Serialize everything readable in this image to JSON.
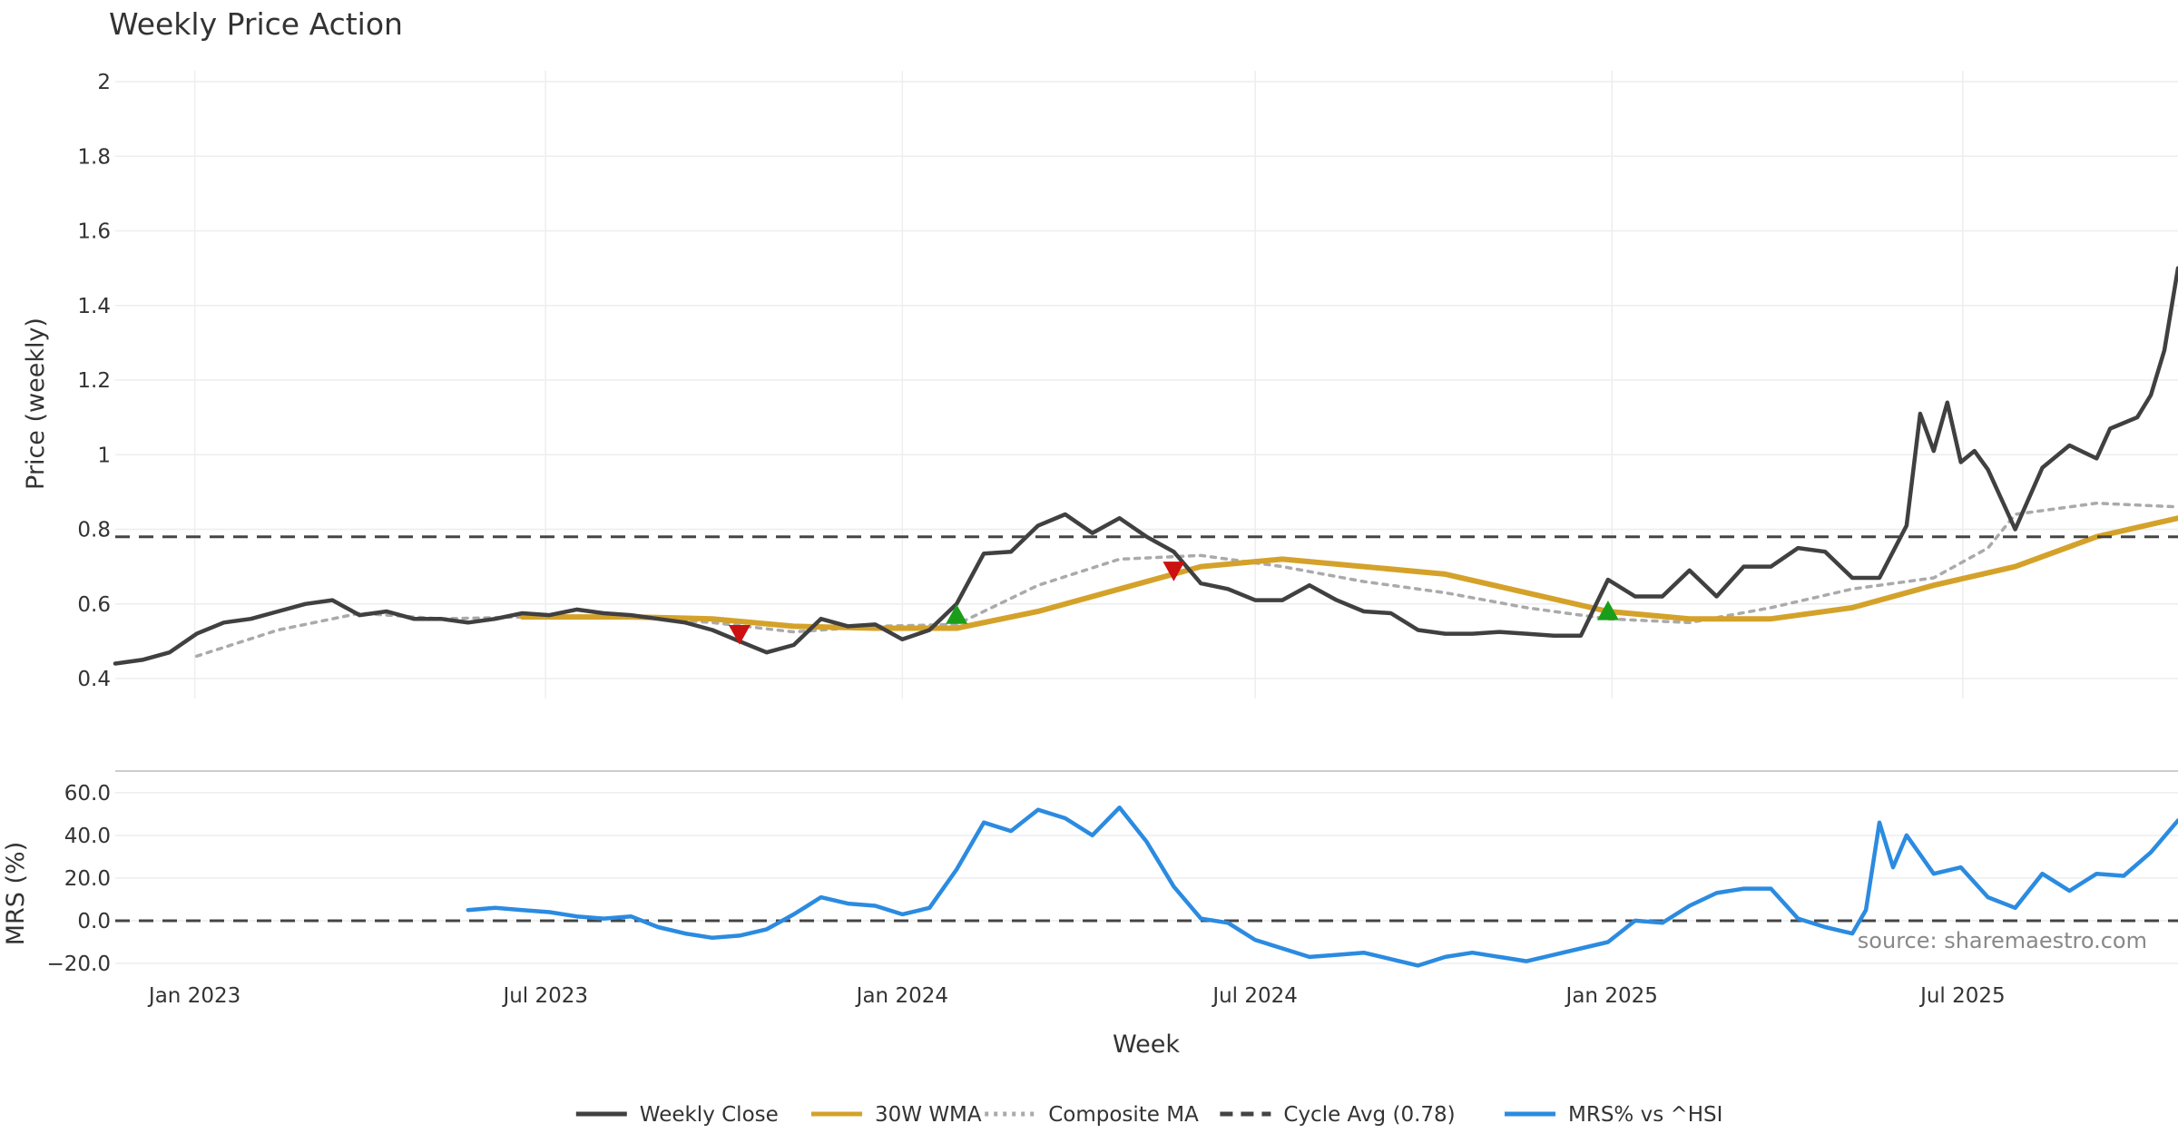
{
  "chart_data": [
    {
      "type": "line",
      "title": "Weekly Price Action",
      "xlabel": "",
      "ylabel": "Price (weekly)",
      "ylim": [
        0.4,
        2.0
      ],
      "xlim": [
        "2022-11-21",
        "2025-10-20"
      ],
      "yticks": [
        "0.4",
        "0.6",
        "0.8",
        "1",
        "1.2",
        "1.4",
        "1.6",
        "1.8",
        "2"
      ],
      "ytick_values": [
        0.4,
        0.6,
        0.8,
        1.0,
        1.2,
        1.4,
        1.6,
        1.8,
        2.0
      ],
      "grid": true,
      "series": [
        {
          "name": "Weekly Close",
          "color": "#404040",
          "style": "solid",
          "points": [
            [
              "2022-11-21",
              0.44
            ],
            [
              "2022-12-05",
              0.45
            ],
            [
              "2022-12-19",
              0.47
            ],
            [
              "2023-01-02",
              0.52
            ],
            [
              "2023-01-16",
              0.55
            ],
            [
              "2023-01-30",
              0.56
            ],
            [
              "2023-02-13",
              0.58
            ],
            [
              "2023-02-27",
              0.6
            ],
            [
              "2023-03-13",
              0.61
            ],
            [
              "2023-03-27",
              0.57
            ],
            [
              "2023-04-10",
              0.58
            ],
            [
              "2023-04-24",
              0.56
            ],
            [
              "2023-05-08",
              0.56
            ],
            [
              "2023-05-22",
              0.55
            ],
            [
              "2023-06-05",
              0.56
            ],
            [
              "2023-06-19",
              0.575
            ],
            [
              "2023-07-03",
              0.57
            ],
            [
              "2023-07-17",
              0.585
            ],
            [
              "2023-07-31",
              0.575
            ],
            [
              "2023-08-14",
              0.57
            ],
            [
              "2023-08-28",
              0.56
            ],
            [
              "2023-09-11",
              0.55
            ],
            [
              "2023-09-25",
              0.53
            ],
            [
              "2023-10-09",
              0.5
            ],
            [
              "2023-10-23",
              0.47
            ],
            [
              "2023-11-06",
              0.49
            ],
            [
              "2023-11-20",
              0.56
            ],
            [
              "2023-12-04",
              0.54
            ],
            [
              "2023-12-18",
              0.545
            ],
            [
              "2024-01-01",
              0.505
            ],
            [
              "2024-01-15",
              0.53
            ],
            [
              "2024-01-29",
              0.6
            ],
            [
              "2024-02-12",
              0.735
            ],
            [
              "2024-02-26",
              0.74
            ],
            [
              "2024-03-11",
              0.81
            ],
            [
              "2024-03-25",
              0.84
            ],
            [
              "2024-04-08",
              0.79
            ],
            [
              "2024-04-22",
              0.83
            ],
            [
              "2024-05-06",
              0.78
            ],
            [
              "2024-05-20",
              0.74
            ],
            [
              "2024-06-03",
              0.655
            ],
            [
              "2024-06-17",
              0.64
            ],
            [
              "2024-07-01",
              0.61
            ],
            [
              "2024-07-15",
              0.61
            ],
            [
              "2024-07-29",
              0.65
            ],
            [
              "2024-08-12",
              0.61
            ],
            [
              "2024-08-26",
              0.58
            ],
            [
              "2024-09-09",
              0.575
            ],
            [
              "2024-09-23",
              0.53
            ],
            [
              "2024-10-07",
              0.52
            ],
            [
              "2024-10-21",
              0.52
            ],
            [
              "2024-11-04",
              0.525
            ],
            [
              "2024-11-18",
              0.52
            ],
            [
              "2024-12-02",
              0.515
            ],
            [
              "2024-12-16",
              0.515
            ],
            [
              "2024-12-30",
              0.665
            ],
            [
              "2025-01-13",
              0.62
            ],
            [
              "2025-01-27",
              0.62
            ],
            [
              "2025-02-10",
              0.69
            ],
            [
              "2025-02-24",
              0.62
            ],
            [
              "2025-03-10",
              0.7
            ],
            [
              "2025-03-24",
              0.7
            ],
            [
              "2025-04-07",
              0.75
            ],
            [
              "2025-04-21",
              0.74
            ],
            [
              "2025-05-05",
              0.67
            ],
            [
              "2025-05-19",
              0.67
            ],
            [
              "2025-06-02",
              0.81
            ],
            [
              "2025-06-09",
              1.11
            ],
            [
              "2025-06-16",
              1.01
            ],
            [
              "2025-06-23",
              1.14
            ],
            [
              "2025-06-30",
              0.98
            ],
            [
              "2025-07-07",
              1.01
            ],
            [
              "2025-07-14",
              0.96
            ],
            [
              "2025-07-28",
              0.8
            ],
            [
              "2025-08-11",
              0.965
            ],
            [
              "2025-08-25",
              1.025
            ],
            [
              "2025-09-08",
              0.99
            ],
            [
              "2025-09-15",
              1.07
            ],
            [
              "2025-09-29",
              1.1
            ],
            [
              "2025-10-06",
              1.16
            ],
            [
              "2025-10-13",
              1.28
            ],
            [
              "2025-10-20",
              1.5
            ]
          ]
        },
        {
          "name": "30W WMA",
          "color": "#d4a22a",
          "style": "solid",
          "points": [
            [
              "2023-06-19",
              0.565
            ],
            [
              "2023-08-14",
              0.565
            ],
            [
              "2023-09-25",
              0.56
            ],
            [
              "2023-11-06",
              0.54
            ],
            [
              "2023-12-18",
              0.535
            ],
            [
              "2024-01-29",
              0.535
            ],
            [
              "2024-03-11",
              0.58
            ],
            [
              "2024-04-22",
              0.64
            ],
            [
              "2024-06-03",
              0.7
            ],
            [
              "2024-07-15",
              0.72
            ],
            [
              "2024-08-26",
              0.7
            ],
            [
              "2024-10-07",
              0.68
            ],
            [
              "2024-11-18",
              0.63
            ],
            [
              "2024-12-30",
              0.58
            ],
            [
              "2025-02-10",
              0.56
            ],
            [
              "2025-03-24",
              0.56
            ],
            [
              "2025-05-05",
              0.59
            ],
            [
              "2025-06-16",
              0.65
            ],
            [
              "2025-07-28",
              0.7
            ],
            [
              "2025-09-08",
              0.78
            ],
            [
              "2025-10-20",
              0.83
            ]
          ]
        },
        {
          "name": "Composite MA",
          "color": "#aaaaaa",
          "style": "dotted",
          "points": [
            [
              "2023-01-02",
              0.46
            ],
            [
              "2023-02-13",
              0.53
            ],
            [
              "2023-03-27",
              0.575
            ],
            [
              "2023-05-08",
              0.56
            ],
            [
              "2023-06-19",
              0.565
            ],
            [
              "2023-08-14",
              0.565
            ],
            [
              "2023-09-25",
              0.55
            ],
            [
              "2023-11-06",
              0.525
            ],
            [
              "2023-12-18",
              0.54
            ],
            [
              "2024-01-29",
              0.545
            ],
            [
              "2024-03-11",
              0.65
            ],
            [
              "2024-04-22",
              0.72
            ],
            [
              "2024-06-03",
              0.73
            ],
            [
              "2024-07-15",
              0.7
            ],
            [
              "2024-08-26",
              0.66
            ],
            [
              "2024-10-07",
              0.63
            ],
            [
              "2024-11-18",
              0.59
            ],
            [
              "2024-12-30",
              0.56
            ],
            [
              "2025-02-10",
              0.55
            ],
            [
              "2025-03-24",
              0.59
            ],
            [
              "2025-05-05",
              0.64
            ],
            [
              "2025-06-16",
              0.67
            ],
            [
              "2025-07-14",
              0.75
            ],
            [
              "2025-07-28",
              0.84
            ],
            [
              "2025-09-08",
              0.87
            ],
            [
              "2025-10-20",
              0.86
            ]
          ]
        },
        {
          "name": "Cycle Avg (0.78)",
          "color": "#444444",
          "style": "dashed",
          "value": 0.78
        }
      ],
      "markers": [
        {
          "type": "sell",
          "date": "2023-10-09",
          "value": 0.52,
          "color": "#cc1111"
        },
        {
          "type": "buy",
          "date": "2024-01-29",
          "value": 0.57,
          "color": "#1a9e1a"
        },
        {
          "type": "sell",
          "date": "2024-05-20",
          "value": 0.69,
          "color": "#cc1111"
        },
        {
          "type": "buy",
          "date": "2024-12-30",
          "value": 0.58,
          "color": "#1a9e1a"
        }
      ]
    },
    {
      "type": "line",
      "title": "",
      "xlabel": "Week",
      "ylabel": "MRS (%)",
      "ylim": [
        -20,
        65
      ],
      "yticks": [
        "−20.0",
        "0.0",
        "20.0",
        "40.0",
        "60.0"
      ],
      "ytick_values": [
        -20,
        0,
        20,
        40,
        60
      ],
      "xticks": [
        "Jan 2023",
        "Jul 2023",
        "Jan 2024",
        "Jul 2024",
        "Jan 2025",
        "Jul 2025"
      ],
      "xtick_dates": [
        "2023-01-01",
        "2023-07-01",
        "2024-01-01",
        "2024-07-01",
        "2025-01-01",
        "2025-07-01"
      ],
      "series": [
        {
          "name": "MRS% vs ^HSI",
          "color": "#2b8be0",
          "style": "solid",
          "points": [
            [
              "2023-05-22",
              5
            ],
            [
              "2023-06-05",
              6
            ],
            [
              "2023-06-19",
              5
            ],
            [
              "2023-07-03",
              4
            ],
            [
              "2023-07-17",
              2
            ],
            [
              "2023-07-31",
              1
            ],
            [
              "2023-08-14",
              2
            ],
            [
              "2023-08-28",
              -3
            ],
            [
              "2023-09-11",
              -6
            ],
            [
              "2023-09-25",
              -8
            ],
            [
              "2023-10-09",
              -7
            ],
            [
              "2023-10-23",
              -4
            ],
            [
              "2023-11-06",
              3
            ],
            [
              "2023-11-20",
              11
            ],
            [
              "2023-12-04",
              8
            ],
            [
              "2023-12-18",
              7
            ],
            [
              "2024-01-01",
              3
            ],
            [
              "2024-01-15",
              6
            ],
            [
              "2024-01-29",
              24
            ],
            [
              "2024-02-12",
              46
            ],
            [
              "2024-02-26",
              42
            ],
            [
              "2024-03-11",
              52
            ],
            [
              "2024-03-25",
              48
            ],
            [
              "2024-04-08",
              40
            ],
            [
              "2024-04-22",
              53
            ],
            [
              "2024-05-06",
              37
            ],
            [
              "2024-05-20",
              16
            ],
            [
              "2024-06-03",
              1
            ],
            [
              "2024-06-17",
              -1
            ],
            [
              "2024-07-01",
              -9
            ],
            [
              "2024-07-15",
              -13
            ],
            [
              "2024-07-29",
              -17
            ],
            [
              "2024-08-12",
              -16
            ],
            [
              "2024-08-26",
              -15
            ],
            [
              "2024-09-09",
              -18
            ],
            [
              "2024-09-23",
              -21
            ],
            [
              "2024-10-07",
              -17
            ],
            [
              "2024-10-21",
              -15
            ],
            [
              "2024-11-04",
              -17
            ],
            [
              "2024-11-18",
              -19
            ],
            [
              "2024-12-02",
              -16
            ],
            [
              "2024-12-16",
              -13
            ],
            [
              "2024-12-30",
              -10
            ],
            [
              "2025-01-13",
              0
            ],
            [
              "2025-01-27",
              -1
            ],
            [
              "2025-02-10",
              7
            ],
            [
              "2025-02-24",
              13
            ],
            [
              "2025-03-10",
              15
            ],
            [
              "2025-03-24",
              15
            ],
            [
              "2025-04-07",
              1
            ],
            [
              "2025-04-21",
              -3
            ],
            [
              "2025-05-05",
              -6
            ],
            [
              "2025-05-12",
              5
            ],
            [
              "2025-05-19",
              46
            ],
            [
              "2025-05-26",
              25
            ],
            [
              "2025-06-02",
              40
            ],
            [
              "2025-06-16",
              22
            ],
            [
              "2025-06-30",
              25
            ],
            [
              "2025-07-14",
              11
            ],
            [
              "2025-07-28",
              6
            ],
            [
              "2025-08-11",
              22
            ],
            [
              "2025-08-25",
              14
            ],
            [
              "2025-09-08",
              22
            ],
            [
              "2025-09-22",
              21
            ],
            [
              "2025-10-06",
              32
            ],
            [
              "2025-10-20",
              47
            ]
          ]
        },
        {
          "name": "",
          "color": "#444444",
          "style": "dashed",
          "value": 0
        }
      ]
    }
  ],
  "source": "source: sharemaestro.com",
  "legend": [
    {
      "label": "Weekly Close",
      "color": "#404040",
      "style": "solid"
    },
    {
      "label": "30W WMA",
      "color": "#d4a22a",
      "style": "solid"
    },
    {
      "label": "Composite MA",
      "color": "#aaaaaa",
      "style": "dotted"
    },
    {
      "label": "Cycle Avg (0.78)",
      "color": "#444444",
      "style": "dashed"
    },
    {
      "label": "MRS% vs ^HSI",
      "color": "#2b8be0",
      "style": "solid"
    }
  ]
}
